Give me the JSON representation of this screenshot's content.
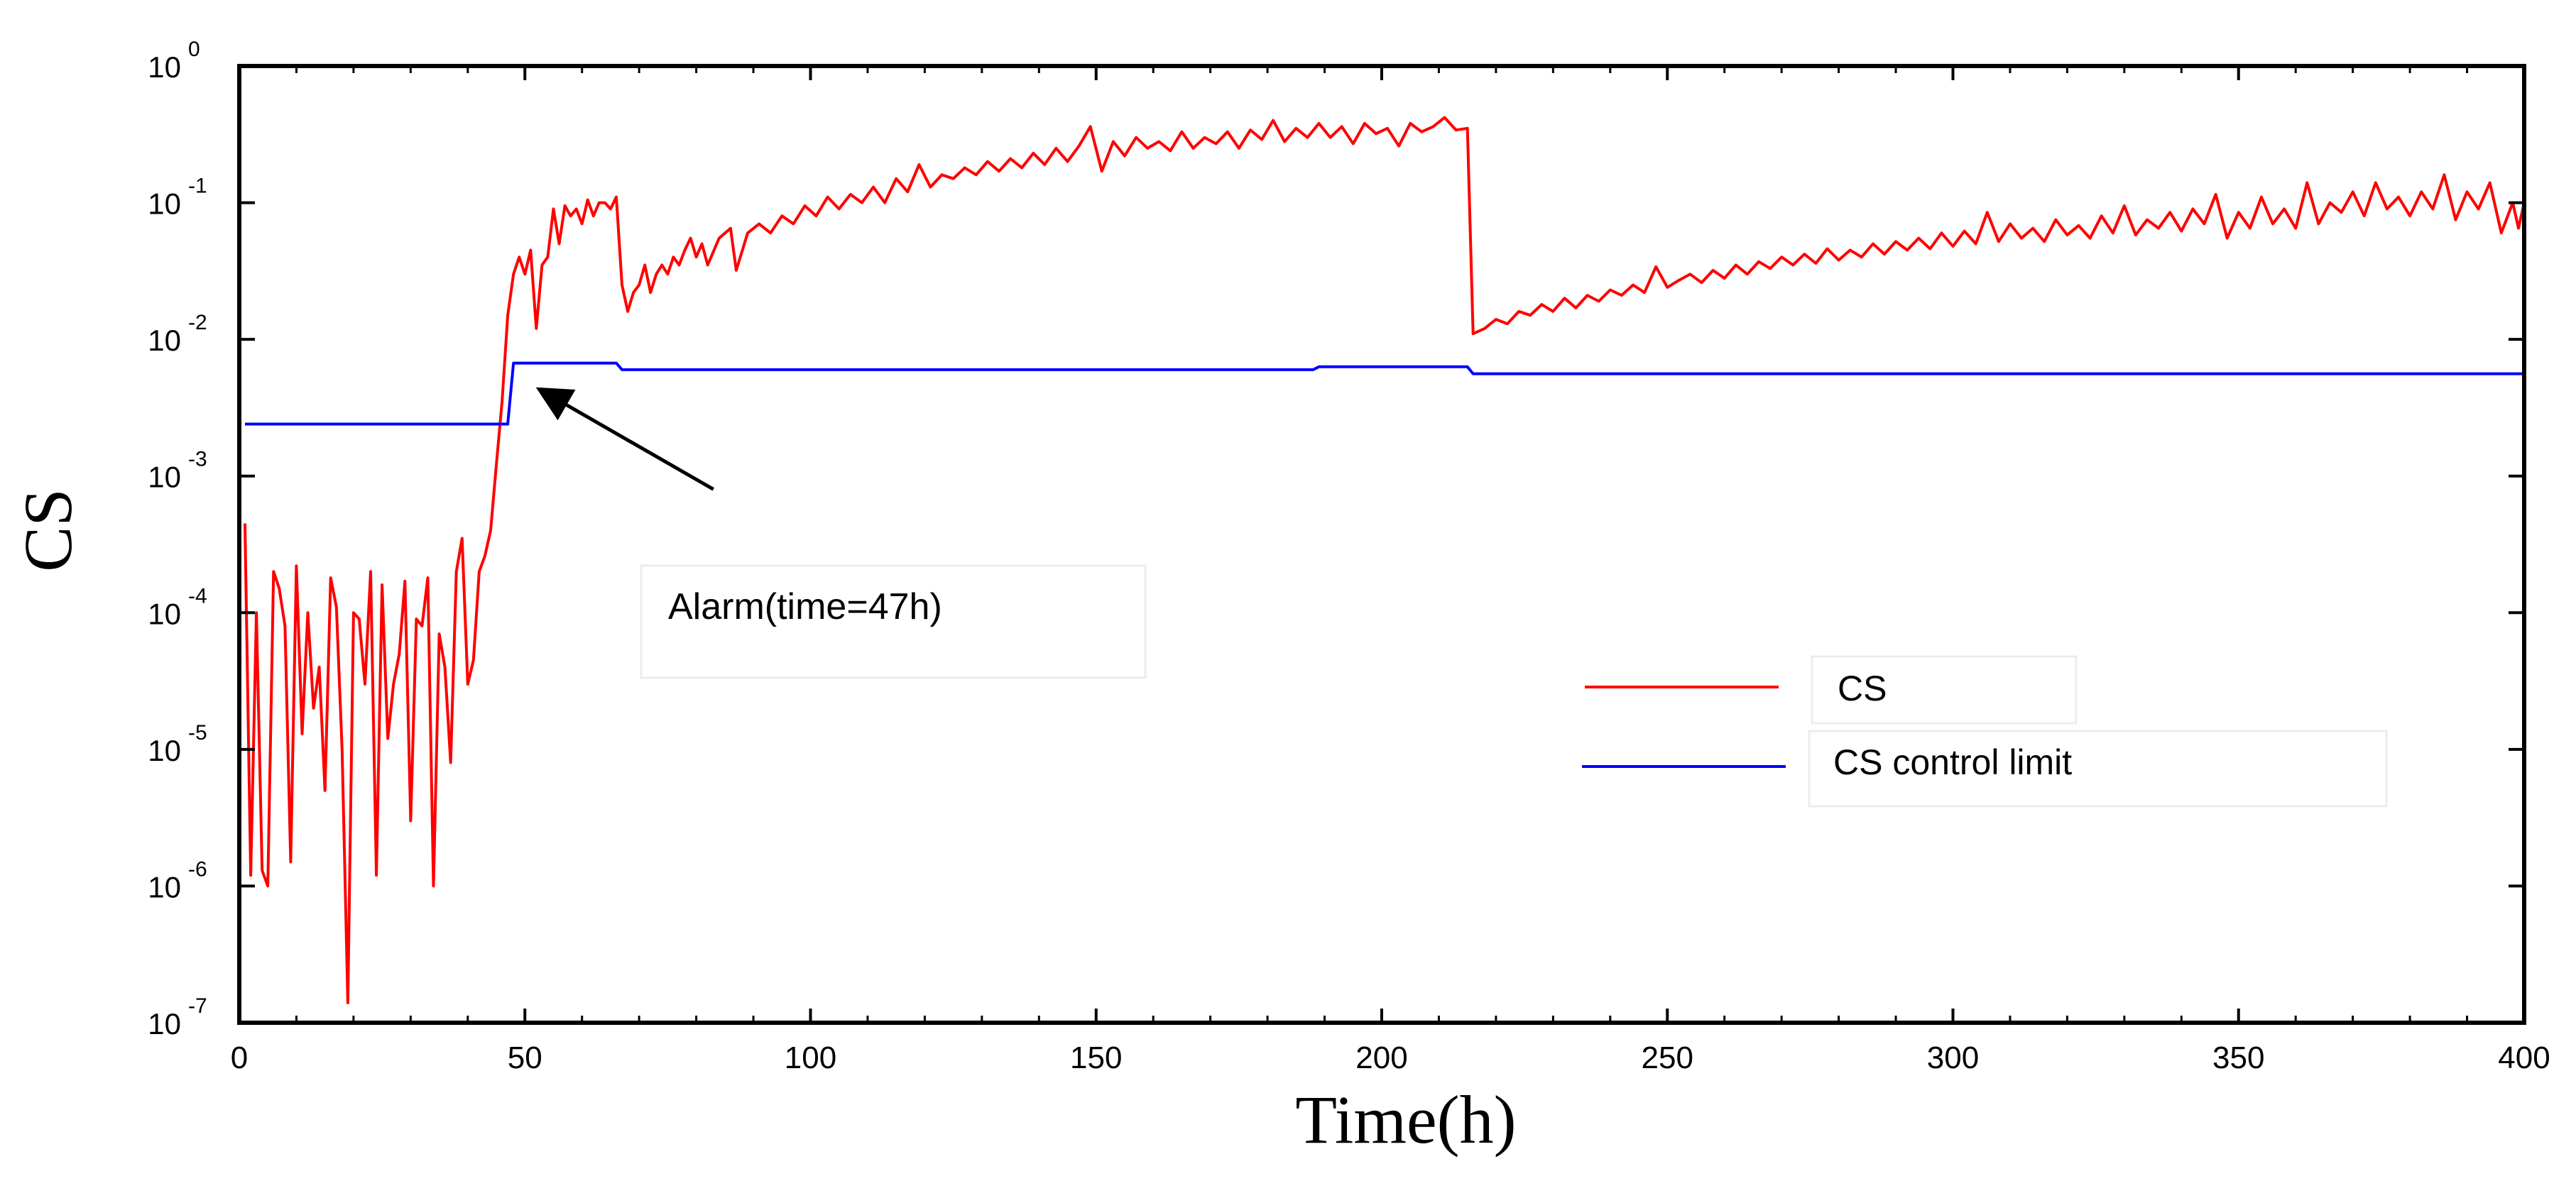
{
  "chart_data": {
    "type": "line",
    "title": "",
    "xlabel": "Time(h)",
    "ylabel": "CS",
    "yscale": "log",
    "xlim": [
      0,
      400
    ],
    "ylim": [
      1e-07,
      1
    ],
    "x_ticks": [
      0,
      50,
      100,
      150,
      200,
      250,
      300,
      350,
      400
    ],
    "x_tick_labels": [
      "0",
      "50",
      "100",
      "150",
      "200",
      "250",
      "300",
      "350",
      "400"
    ],
    "y_ticks": [
      {
        "value": 1,
        "base": "10",
        "exp": "0"
      },
      {
        "value": 0.1,
        "base": "10",
        "exp": "-1"
      },
      {
        "value": 0.01,
        "base": "10",
        "exp": "-2"
      },
      {
        "value": 0.001,
        "base": "10",
        "exp": "-3"
      },
      {
        "value": 0.0001,
        "base": "10",
        "exp": "-4"
      },
      {
        "value": 1e-05,
        "base": "10",
        "exp": "-5"
      },
      {
        "value": 1e-06,
        "base": "10",
        "exp": "-6"
      },
      {
        "value": 1e-07,
        "base": "10",
        "exp": "-7"
      }
    ],
    "grid": false,
    "legend_position": "center-right",
    "series": [
      {
        "name": "CS",
        "color": "#ff0000",
        "points": [
          [
            1,
            0.00045
          ],
          [
            2,
            1.2e-06
          ],
          [
            3,
            0.0001
          ],
          [
            4,
            1.3e-06
          ],
          [
            5,
            1e-06
          ],
          [
            6,
            0.0002
          ],
          [
            7,
            0.00015
          ],
          [
            8,
            8e-05
          ],
          [
            9,
            1.5e-06
          ],
          [
            10,
            0.00022
          ],
          [
            11,
            1.3e-05
          ],
          [
            12,
            0.0001
          ],
          [
            13,
            2e-05
          ],
          [
            14,
            4e-05
          ],
          [
            15,
            5e-06
          ],
          [
            16,
            0.00018
          ],
          [
            17,
            0.00011
          ],
          [
            18,
            1e-05
          ],
          [
            19,
            1.4e-07
          ],
          [
            20,
            0.0001
          ],
          [
            21,
            9e-05
          ],
          [
            22,
            3e-05
          ],
          [
            23,
            0.0002
          ],
          [
            24,
            1.2e-06
          ],
          [
            25,
            0.00016
          ],
          [
            26,
            1.2e-05
          ],
          [
            27,
            3e-05
          ],
          [
            28,
            5e-05
          ],
          [
            29,
            0.00017
          ],
          [
            30,
            3e-06
          ],
          [
            31,
            9e-05
          ],
          [
            32,
            8e-05
          ],
          [
            33,
            0.00018
          ],
          [
            34,
            1e-06
          ],
          [
            35,
            7e-05
          ],
          [
            36,
            4e-05
          ],
          [
            37,
            8e-06
          ],
          [
            38,
            0.0002
          ],
          [
            39,
            0.00035
          ],
          [
            40,
            3e-05
          ],
          [
            41,
            4.5e-05
          ],
          [
            42,
            0.0002
          ],
          [
            43,
            0.00026
          ],
          [
            44,
            0.0004
          ],
          [
            45,
            0.0012
          ],
          [
            46,
            0.0035
          ],
          [
            47,
            0.015
          ],
          [
            48,
            0.03
          ],
          [
            49,
            0.04
          ],
          [
            50,
            0.03
          ],
          [
            51,
            0.045
          ],
          [
            52,
            0.012
          ],
          [
            53,
            0.035
          ],
          [
            54,
            0.04
          ],
          [
            55,
            0.09
          ],
          [
            56,
            0.05
          ],
          [
            57,
            0.095
          ],
          [
            58,
            0.08
          ],
          [
            59,
            0.09
          ],
          [
            60,
            0.07
          ],
          [
            61,
            0.105
          ],
          [
            62,
            0.08
          ],
          [
            63,
            0.1
          ],
          [
            64,
            0.1
          ],
          [
            65,
            0.09
          ],
          [
            66,
            0.11
          ],
          [
            67,
            0.025
          ],
          [
            68,
            0.016
          ],
          [
            69,
            0.022
          ],
          [
            70,
            0.025
          ],
          [
            71,
            0.035
          ],
          [
            72,
            0.022
          ],
          [
            73,
            0.03
          ],
          [
            74,
            0.035
          ],
          [
            75,
            0.03
          ],
          [
            76,
            0.04
          ],
          [
            77,
            0.035
          ],
          [
            78,
            0.045
          ],
          [
            79,
            0.055
          ],
          [
            80,
            0.04
          ],
          [
            81,
            0.05
          ],
          [
            82,
            0.035
          ],
          [
            84,
            0.055
          ],
          [
            86,
            0.065
          ],
          [
            87,
            0.032
          ],
          [
            89,
            0.06
          ],
          [
            91,
            0.07
          ],
          [
            93,
            0.06
          ],
          [
            95,
            0.08
          ],
          [
            97,
            0.07
          ],
          [
            99,
            0.095
          ],
          [
            101,
            0.08
          ],
          [
            103,
            0.11
          ],
          [
            105,
            0.09
          ],
          [
            107,
            0.115
          ],
          [
            109,
            0.1
          ],
          [
            111,
            0.13
          ],
          [
            113,
            0.1
          ],
          [
            115,
            0.15
          ],
          [
            117,
            0.12
          ],
          [
            119,
            0.19
          ],
          [
            121,
            0.13
          ],
          [
            123,
            0.16
          ],
          [
            125,
            0.15
          ],
          [
            127,
            0.18
          ],
          [
            129,
            0.16
          ],
          [
            131,
            0.2
          ],
          [
            133,
            0.17
          ],
          [
            135,
            0.21
          ],
          [
            137,
            0.18
          ],
          [
            139,
            0.23
          ],
          [
            141,
            0.19
          ],
          [
            143,
            0.25
          ],
          [
            145,
            0.2
          ],
          [
            147,
            0.26
          ],
          [
            149,
            0.36
          ],
          [
            151,
            0.17
          ],
          [
            153,
            0.28
          ],
          [
            155,
            0.22
          ],
          [
            157,
            0.3
          ],
          [
            159,
            0.25
          ],
          [
            161,
            0.28
          ],
          [
            163,
            0.24
          ],
          [
            165,
            0.33
          ],
          [
            167,
            0.25
          ],
          [
            169,
            0.3
          ],
          [
            171,
            0.27
          ],
          [
            173,
            0.33
          ],
          [
            175,
            0.25
          ],
          [
            177,
            0.34
          ],
          [
            179,
            0.29
          ],
          [
            181,
            0.4
          ],
          [
            183,
            0.28
          ],
          [
            185,
            0.35
          ],
          [
            187,
            0.3
          ],
          [
            189,
            0.38
          ],
          [
            191,
            0.3
          ],
          [
            193,
            0.36
          ],
          [
            195,
            0.27
          ],
          [
            197,
            0.38
          ],
          [
            199,
            0.32
          ],
          [
            201,
            0.35
          ],
          [
            203,
            0.26
          ],
          [
            205,
            0.38
          ],
          [
            207,
            0.33
          ],
          [
            209,
            0.36
          ],
          [
            211,
            0.42
          ],
          [
            213,
            0.34
          ],
          [
            215,
            0.35
          ],
          [
            216,
            0.011
          ],
          [
            218,
            0.012
          ],
          [
            220,
            0.014
          ],
          [
            222,
            0.013
          ],
          [
            224,
            0.016
          ],
          [
            226,
            0.015
          ],
          [
            228,
            0.018
          ],
          [
            230,
            0.016
          ],
          [
            232,
            0.02
          ],
          [
            234,
            0.017
          ],
          [
            236,
            0.021
          ],
          [
            238,
            0.019
          ],
          [
            240,
            0.023
          ],
          [
            242,
            0.021
          ],
          [
            244,
            0.025
          ],
          [
            246,
            0.022
          ],
          [
            248,
            0.034
          ],
          [
            250,
            0.024
          ],
          [
            252,
            0.027
          ],
          [
            254,
            0.03
          ],
          [
            256,
            0.026
          ],
          [
            258,
            0.032
          ],
          [
            260,
            0.028
          ],
          [
            262,
            0.035
          ],
          [
            264,
            0.03
          ],
          [
            266,
            0.037
          ],
          [
            268,
            0.033
          ],
          [
            270,
            0.04
          ],
          [
            272,
            0.035
          ],
          [
            274,
            0.042
          ],
          [
            276,
            0.036
          ],
          [
            278,
            0.046
          ],
          [
            280,
            0.038
          ],
          [
            282,
            0.045
          ],
          [
            284,
            0.04
          ],
          [
            286,
            0.05
          ],
          [
            288,
            0.042
          ],
          [
            290,
            0.052
          ],
          [
            292,
            0.045
          ],
          [
            294,
            0.055
          ],
          [
            296,
            0.046
          ],
          [
            298,
            0.06
          ],
          [
            300,
            0.048
          ],
          [
            302,
            0.062
          ],
          [
            304,
            0.05
          ],
          [
            306,
            0.085
          ],
          [
            308,
            0.052
          ],
          [
            310,
            0.07
          ],
          [
            312,
            0.055
          ],
          [
            314,
            0.065
          ],
          [
            316,
            0.052
          ],
          [
            318,
            0.075
          ],
          [
            320,
            0.058
          ],
          [
            322,
            0.068
          ],
          [
            324,
            0.055
          ],
          [
            326,
            0.08
          ],
          [
            328,
            0.06
          ],
          [
            330,
            0.095
          ],
          [
            332,
            0.058
          ],
          [
            334,
            0.075
          ],
          [
            336,
            0.065
          ],
          [
            338,
            0.085
          ],
          [
            340,
            0.062
          ],
          [
            342,
            0.09
          ],
          [
            344,
            0.07
          ],
          [
            346,
            0.115
          ],
          [
            348,
            0.055
          ],
          [
            350,
            0.085
          ],
          [
            352,
            0.065
          ],
          [
            354,
            0.11
          ],
          [
            356,
            0.07
          ],
          [
            358,
            0.09
          ],
          [
            360,
            0.065
          ],
          [
            362,
            0.14
          ],
          [
            364,
            0.07
          ],
          [
            366,
            0.1
          ],
          [
            368,
            0.085
          ],
          [
            370,
            0.12
          ],
          [
            372,
            0.08
          ],
          [
            374,
            0.14
          ],
          [
            376,
            0.09
          ],
          [
            378,
            0.11
          ],
          [
            380,
            0.08
          ],
          [
            382,
            0.12
          ],
          [
            384,
            0.09
          ],
          [
            386,
            0.16
          ],
          [
            388,
            0.075
          ],
          [
            390,
            0.12
          ],
          [
            392,
            0.09
          ],
          [
            394,
            0.14
          ],
          [
            396,
            0.06
          ],
          [
            398,
            0.1
          ],
          [
            399,
            0.065
          ],
          [
            400,
            0.1
          ]
        ]
      },
      {
        "name": "CS control limit",
        "color": "#0000ff",
        "points": [
          [
            1,
            0.0024
          ],
          [
            47,
            0.0024
          ],
          [
            48,
            0.0067
          ],
          [
            66,
            0.0067
          ],
          [
            67,
            0.006
          ],
          [
            188,
            0.006
          ],
          [
            189,
            0.0063
          ],
          [
            215,
            0.0063
          ],
          [
            216,
            0.0056
          ],
          [
            400,
            0.0056
          ]
        ]
      }
    ],
    "annotations": [
      {
        "text": "Alarm(time=47h)",
        "arrow_from": [
          83,
          0.0008
        ],
        "arrow_to": [
          53,
          0.0042
        ]
      }
    ]
  }
}
